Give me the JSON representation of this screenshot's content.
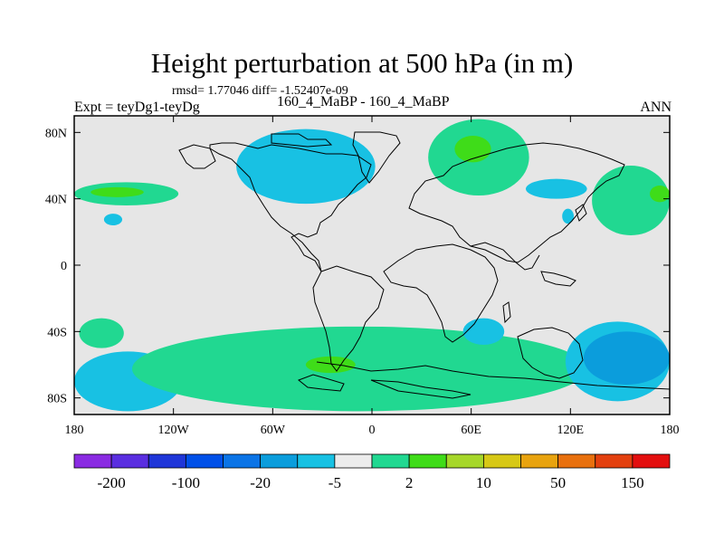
{
  "title": "Height perturbation at 500 hPa (in m)",
  "stats_text": "rmsd= 1.77046 diff= -1.52407e-09",
  "expt_label": "Expt = teyDg1-teyDg",
  "case_label": "160_4_MaBP - 160_4_MaBP",
  "season_label": "ANN",
  "map": {
    "lon_range": [
      -180,
      180
    ],
    "lat_range": [
      -90,
      90
    ],
    "lon_ticks": [
      {
        "value": -180,
        "label": "180"
      },
      {
        "value": -120,
        "label": "120W"
      },
      {
        "value": -60,
        "label": "60W"
      },
      {
        "value": 0,
        "label": "0"
      },
      {
        "value": 60,
        "label": "60E"
      },
      {
        "value": 120,
        "label": "120E"
      },
      {
        "value": 180,
        "label": "180"
      }
    ],
    "lat_ticks": [
      {
        "value": 80,
        "label": "80N"
      },
      {
        "value": 40,
        "label": "40N"
      },
      {
        "value": 0,
        "label": "0"
      },
      {
        "value": -40,
        "label": "40S"
      },
      {
        "value": -80,
        "label": "80S"
      }
    ],
    "background_color": "#e6e6e6",
    "regions": [
      {
        "name": "n-pacific-positive",
        "level": "2 to 10",
        "color": "#21d891",
        "lon": [
          -180,
          -117
        ],
        "lat": [
          50,
          36
        ]
      },
      {
        "name": "n-pacific-core",
        "level": "10 to 20",
        "color": "#3fdc19",
        "lon": [
          -170,
          -138
        ],
        "lat": [
          47,
          41
        ]
      },
      {
        "name": "n-pacific-small-negative",
        "level": "-5 to -2",
        "color": "#18c1e3",
        "lon": [
          -162,
          -151
        ],
        "lat": [
          31,
          24
        ]
      },
      {
        "name": "n-america-negative",
        "level": "-5 to -2",
        "color": "#18c1e3",
        "lon": [
          -82,
          2
        ],
        "lat": [
          82,
          37
        ]
      },
      {
        "name": "arctic-positive",
        "level": "2 to 10",
        "color": "#21d891",
        "lon": [
          34,
          95
        ],
        "lat": [
          88,
          42
        ]
      },
      {
        "name": "arctic-core",
        "level": "10 to 20",
        "color": "#3fdc19",
        "lon": [
          50,
          72
        ],
        "lat": [
          78,
          62
        ]
      },
      {
        "name": "e-asia-negative",
        "level": "-5 to -2",
        "color": "#18c1e3",
        "lon": [
          93,
          130
        ],
        "lat": [
          52,
          40
        ]
      },
      {
        "name": "japan-negative",
        "level": "-5 to -2",
        "color": "#18c1e3",
        "lon": [
          115,
          122
        ],
        "lat": [
          34,
          25
        ]
      },
      {
        "name": "ne-pacific-positive",
        "level": "2 to 10",
        "color": "#21d891",
        "lon": [
          133,
          180
        ],
        "lat": [
          60,
          18
        ]
      },
      {
        "name": "ne-pacific-core",
        "level": "10 to 20",
        "color": "#3fdc19",
        "lon": [
          168,
          180
        ],
        "lat": [
          48,
          38
        ]
      },
      {
        "name": "s-pacific-positive",
        "level": "2 to 10",
        "color": "#21d891",
        "lon": [
          -177,
          -150
        ],
        "lat": [
          -32,
          -50
        ]
      },
      {
        "name": "s-pacific-negative",
        "level": "-5 to -2",
        "color": "#18c1e3",
        "lon": [
          -180,
          -115
        ],
        "lat": [
          -52,
          -88
        ]
      },
      {
        "name": "southern-ocean-positive",
        "level": "2 to 10",
        "color": "#21d891",
        "lon": [
          -145,
          130
        ],
        "lat": [
          -37,
          -88
        ]
      },
      {
        "name": "southern-ocean-core",
        "level": "10 to 20",
        "color": "#3fdc19",
        "lon": [
          -40,
          -10
        ],
        "lat": [
          -55,
          -65
        ]
      },
      {
        "name": "indian-ocean-negative",
        "level": "-5 to -2",
        "color": "#18c1e3",
        "lon": [
          55,
          80
        ],
        "lat": [
          -32,
          -48
        ]
      },
      {
        "name": "s-indian-negative",
        "level": "-5 to -2",
        "color": "#18c1e3",
        "lon": [
          117,
          180
        ],
        "lat": [
          -34,
          -82
        ]
      },
      {
        "name": "s-indian-core",
        "level": "-20 to -5",
        "color": "#0b9ddc",
        "lon": [
          128,
          180
        ],
        "lat": [
          -40,
          -72
        ]
      }
    ]
  },
  "colorbar": {
    "colors": [
      "#8a2be2",
      "#5a2ee0",
      "#1f36d8",
      "#0050e8",
      "#0b74e6",
      "#0b9ddc",
      "#18c1e3",
      "#ececec",
      "#21d891",
      "#3fdc19",
      "#a6d72a",
      "#d7c816",
      "#e8a30f",
      "#e8700e",
      "#e3400f",
      "#e30f0f"
    ],
    "labels": [
      "-200",
      "-100",
      "-20",
      "-5",
      "2",
      "10",
      "50",
      "150"
    ]
  }
}
